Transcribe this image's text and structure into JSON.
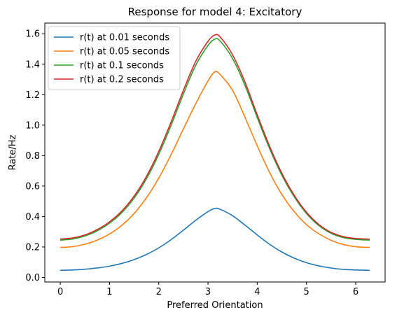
{
  "chart_data": {
    "type": "line",
    "title": "Response for model 4: Excitatory",
    "xlabel": "Preferred Orientation",
    "ylabel": "Rate/Hz",
    "xlim": [
      -0.314,
      6.597
    ],
    "ylim": [
      -0.03,
      1.67
    ],
    "xticks": [
      0,
      1,
      2,
      3,
      4,
      5,
      6
    ],
    "yticks": [
      0.0,
      0.2,
      0.4,
      0.6,
      0.8,
      1.0,
      1.2,
      1.4,
      1.6
    ],
    "grid": false,
    "legend_position": "top-left",
    "x": [
      0,
      0.25,
      0.5,
      0.75,
      1.0,
      1.25,
      1.5,
      1.75,
      2.0,
      2.25,
      2.5,
      2.75,
      3.0,
      3.1416,
      3.25,
      3.5,
      3.75,
      4.0,
      4.25,
      4.5,
      4.75,
      5.0,
      5.25,
      5.5,
      5.75,
      6.0,
      6.2832
    ],
    "series": [
      {
        "name": "r(t) at 0.01 seconds",
        "color": "#1f77b4",
        "values": [
          0.047,
          0.049,
          0.054,
          0.062,
          0.074,
          0.092,
          0.117,
          0.151,
          0.194,
          0.248,
          0.31,
          0.375,
          0.432,
          0.453,
          0.447,
          0.405,
          0.344,
          0.279,
          0.218,
          0.167,
          0.127,
          0.097,
          0.076,
          0.062,
          0.053,
          0.049,
          0.047
        ]
      },
      {
        "name": "r(t) at 0.05 seconds",
        "color": "#ff7f0e",
        "values": [
          0.197,
          0.202,
          0.218,
          0.245,
          0.285,
          0.342,
          0.42,
          0.523,
          0.652,
          0.806,
          0.975,
          1.14,
          1.29,
          1.35,
          1.331,
          1.228,
          1.053,
          0.865,
          0.69,
          0.545,
          0.433,
          0.347,
          0.287,
          0.244,
          0.216,
          0.202,
          0.197
        ]
      },
      {
        "name": "r(t) at 0.1 seconds",
        "color": "#2ca02c",
        "values": [
          0.245,
          0.252,
          0.272,
          0.306,
          0.356,
          0.425,
          0.521,
          0.648,
          0.808,
          0.998,
          1.204,
          1.392,
          1.523,
          1.565,
          1.551,
          1.437,
          1.262,
          1.05,
          0.847,
          0.671,
          0.53,
          0.42,
          0.341,
          0.29,
          0.262,
          0.25,
          0.245
        ]
      },
      {
        "name": "r(t) at 0.2 seconds",
        "color": "#d62728",
        "values": [
          0.252,
          0.259,
          0.279,
          0.314,
          0.365,
          0.436,
          0.534,
          0.663,
          0.827,
          1.02,
          1.228,
          1.418,
          1.55,
          1.592,
          1.578,
          1.461,
          1.284,
          1.068,
          0.862,
          0.684,
          0.54,
          0.428,
          0.348,
          0.296,
          0.268,
          0.256,
          0.252
        ]
      }
    ]
  }
}
